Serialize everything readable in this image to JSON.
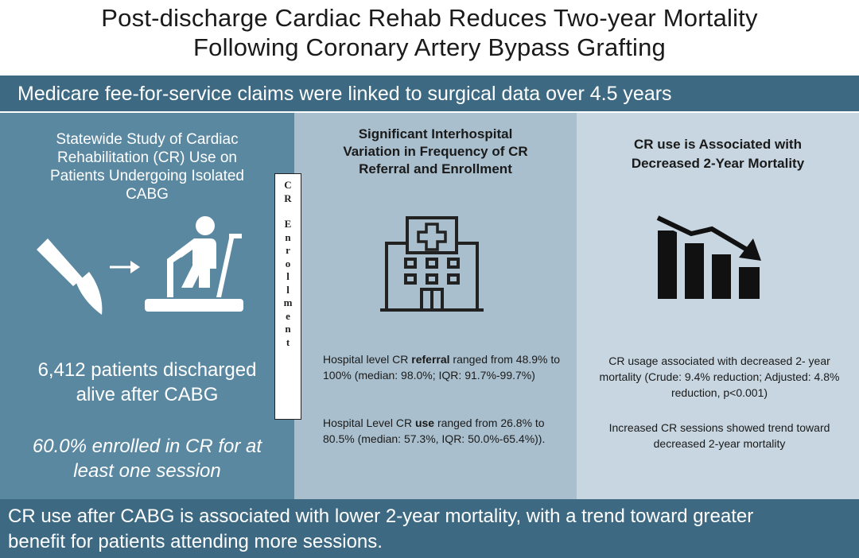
{
  "title": {
    "line1": "Post-discharge Cardiac Rehab Reduces Two-year Mortality",
    "line2": "Following Coronary Artery Bypass Grafting"
  },
  "top_banner": "Medicare fee-for-service claims were linked to surgical data over 4.5 years",
  "left_panel": {
    "heading_lines": [
      "Statewide Study of Cardiac",
      "Rehabilitation (CR) Use on",
      "Patients Undergoing Isolated",
      "CABG"
    ],
    "patients_lines": [
      "6,412 patients discharged",
      "alive after CABG"
    ],
    "enrolled_lines": [
      "60.0% enrolled in CR for at",
      "least one session"
    ],
    "icons": [
      "scalpel-icon",
      "arrow-right-icon",
      "treadmill-icon"
    ]
  },
  "vertical_label": {
    "word1": [
      "C",
      "R"
    ],
    "word2": [
      "E",
      "n",
      "r",
      "o",
      "l",
      "l",
      "m",
      "e",
      "n",
      "t"
    ]
  },
  "middle_panel": {
    "heading_lines": [
      "Significant Interhospital",
      "Variation in Frequency of CR",
      "Referral and Enrollment"
    ],
    "icon": "hospital-icon",
    "referral": {
      "prefix": "Hospital level CR ",
      "bold": "referral",
      "suffix": " ranged from 48.9% to 100% (median: 98.0%; IQR: 91.7%-99.7%)"
    },
    "use": {
      "prefix": "Hospital Level CR ",
      "bold": "use",
      "suffix": " ranged from 26.8% to 80.5% (median: 57.3%, IQR: 50.0%-65.4%))."
    }
  },
  "right_panel": {
    "heading_lines": [
      "CR use is Associated with",
      "Decreased 2-Year Mortality"
    ],
    "icon": "declining-bar-chart-icon",
    "finding1": "CR usage associated with decreased 2- year mortality (Crude: 9.4% reduction; Adjusted: 4.8% reduction, p<0.001)",
    "finding2": "Increased CR sessions showed trend toward decreased 2-year mortality"
  },
  "bottom_banner": {
    "line1": "CR use after CABG is associated with lower 2-year mortality, with a trend toward greater",
    "line2": "benefit for patients attending more sessions."
  },
  "colors": {
    "banner": "#3d6a82",
    "left_panel": "#5a88a0",
    "middle_panel": "#aabfcd",
    "right_panel": "#c7d6e0"
  }
}
